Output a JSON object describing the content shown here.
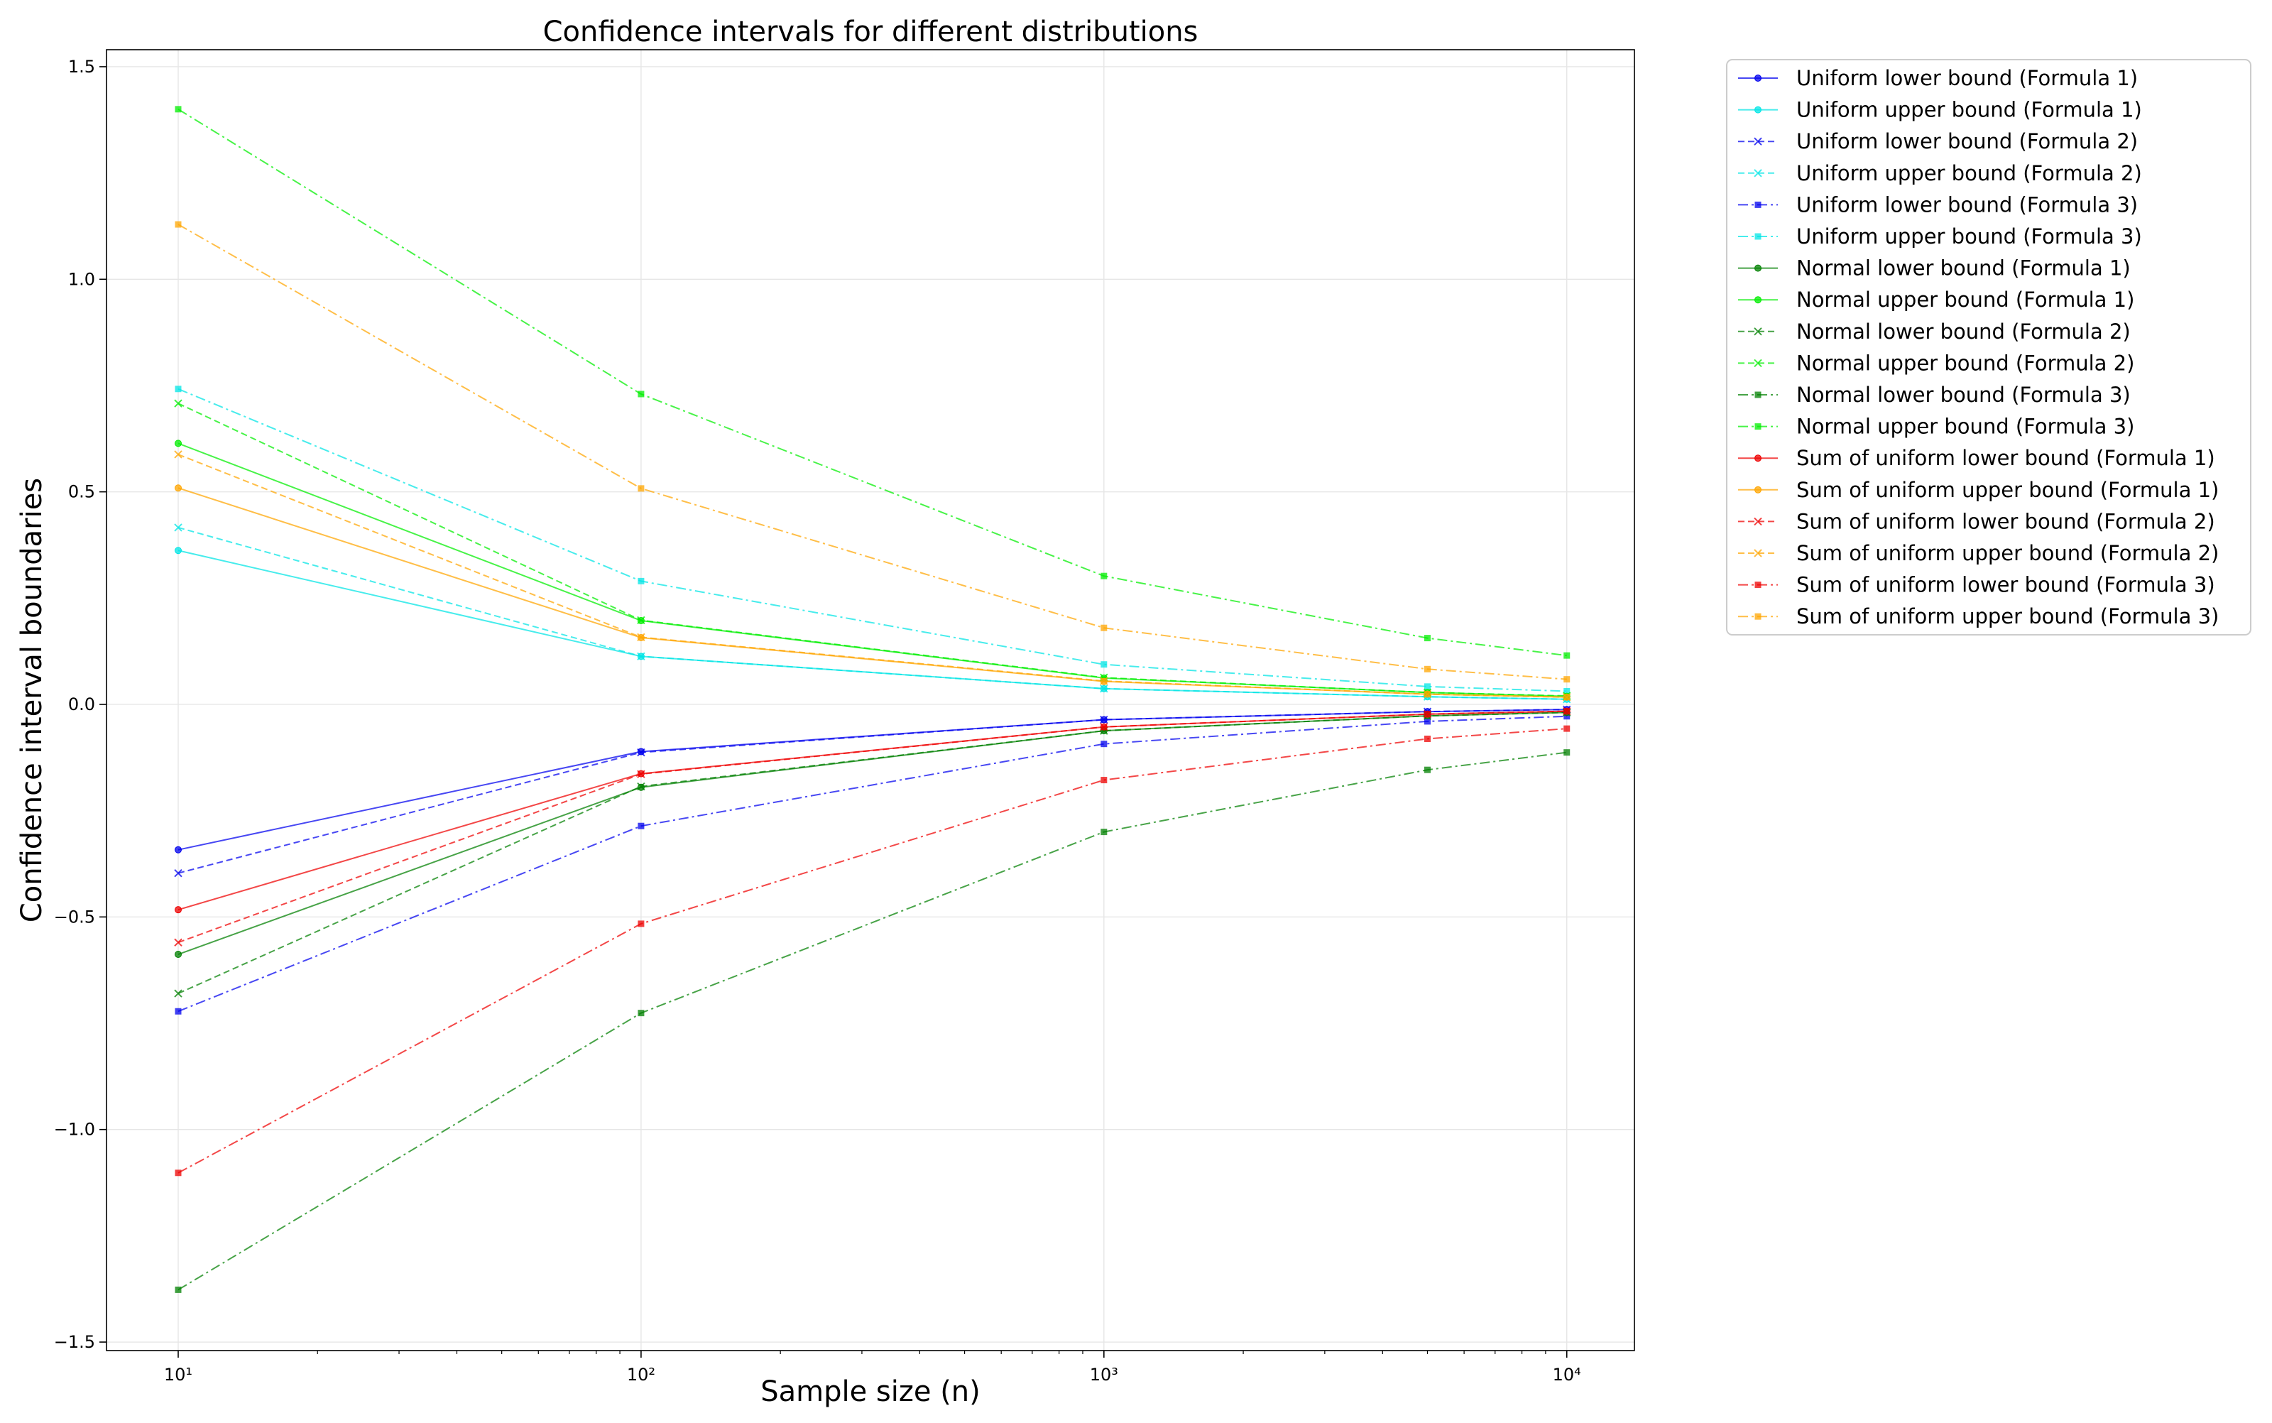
{
  "chart_data": {
    "type": "line",
    "title": "Confidence intervals for different distributions",
    "xlabel": "Sample size (n)",
    "ylabel": "Confidence interval boundaries",
    "xscale": "log",
    "xlim": [
      7,
      14000
    ],
    "ylim": [
      -1.52,
      1.54
    ],
    "x": [
      10,
      100,
      1000,
      5000,
      10000
    ],
    "x_tick_labels": [
      "10¹",
      "10²",
      "10³",
      "10⁴"
    ],
    "x_tick_values": [
      10,
      100,
      1000,
      10000
    ],
    "y_ticks": [
      1.5,
      1.0,
      0.5,
      0.0,
      -0.5,
      -1.0,
      -1.5
    ],
    "y_tick_labels": [
      "1.5",
      "1.0",
      "0.5",
      "0.0",
      "−0.5",
      "−1.0",
      "−1.5"
    ],
    "grid": true,
    "legend_position": "outside-right",
    "series": [
      {
        "name": "Uniform lower bound (Formula 1)",
        "color": "#0000ee",
        "dash": "solid",
        "marker": "circle",
        "values": [
          -0.342,
          -0.111,
          -0.036,
          -0.017,
          -0.012
        ]
      },
      {
        "name": "Uniform upper bound (Formula 1)",
        "color": "#00e5e5",
        "dash": "solid",
        "marker": "circle",
        "values": [
          0.362,
          0.113,
          0.037,
          0.018,
          0.012
        ]
      },
      {
        "name": "Uniform lower bound (Formula 2)",
        "color": "#0000ee",
        "dash": "dashed",
        "marker": "x",
        "values": [
          -0.397,
          -0.113,
          -0.036,
          -0.017,
          -0.012
        ]
      },
      {
        "name": "Uniform upper bound (Formula 2)",
        "color": "#00e5e5",
        "dash": "dashed",
        "marker": "x",
        "values": [
          0.416,
          0.113,
          0.037,
          0.018,
          0.012
        ]
      },
      {
        "name": "Uniform lower bound (Formula 3)",
        "color": "#0000ee",
        "dash": "dashdot",
        "marker": "square",
        "values": [
          -0.722,
          -0.286,
          -0.093,
          -0.04,
          -0.028
        ]
      },
      {
        "name": "Uniform upper bound (Formula 3)",
        "color": "#00e5e5",
        "dash": "dashdot",
        "marker": "square",
        "values": [
          0.742,
          0.29,
          0.094,
          0.042,
          0.031
        ]
      },
      {
        "name": "Normal lower bound (Formula 1)",
        "color": "#008000",
        "dash": "solid",
        "marker": "circle",
        "values": [
          -0.588,
          -0.195,
          -0.062,
          -0.027,
          -0.019
        ]
      },
      {
        "name": "Normal upper bound (Formula 1)",
        "color": "#00ee00",
        "dash": "solid",
        "marker": "circle",
        "values": [
          0.614,
          0.197,
          0.062,
          0.028,
          0.019
        ]
      },
      {
        "name": "Normal lower bound (Formula 2)",
        "color": "#008000",
        "dash": "dashed",
        "marker": "x",
        "values": [
          -0.68,
          -0.193,
          -0.062,
          -0.027,
          -0.019
        ]
      },
      {
        "name": "Normal upper bound (Formula 2)",
        "color": "#00ee00",
        "dash": "dashed",
        "marker": "x",
        "values": [
          0.708,
          0.198,
          0.063,
          0.028,
          0.02
        ]
      },
      {
        "name": "Normal lower bound (Formula 3)",
        "color": "#008000",
        "dash": "dashdot",
        "marker": "square",
        "values": [
          -1.377,
          -0.726,
          -0.3,
          -0.154,
          -0.113
        ]
      },
      {
        "name": "Normal upper bound (Formula 3)",
        "color": "#00ee00",
        "dash": "dashdot",
        "marker": "square",
        "values": [
          1.4,
          0.73,
          0.302,
          0.156,
          0.115
        ]
      },
      {
        "name": "Sum of uniform lower bound (Formula 1)",
        "color": "#ee0000",
        "dash": "solid",
        "marker": "circle",
        "values": [
          -0.483,
          -0.163,
          -0.053,
          -0.023,
          -0.016
        ]
      },
      {
        "name": "Sum of uniform upper bound (Formula 1)",
        "color": "#ffa500",
        "dash": "solid",
        "marker": "circle",
        "values": [
          0.509,
          0.157,
          0.054,
          0.024,
          0.017
        ]
      },
      {
        "name": "Sum of uniform lower bound (Formula 2)",
        "color": "#ee0000",
        "dash": "dashed",
        "marker": "x",
        "values": [
          -0.56,
          -0.164,
          -0.053,
          -0.023,
          -0.016
        ]
      },
      {
        "name": "Sum of uniform upper bound (Formula 2)",
        "color": "#ffa500",
        "dash": "dashed",
        "marker": "x",
        "values": [
          0.588,
          0.158,
          0.055,
          0.024,
          0.017
        ]
      },
      {
        "name": "Sum of uniform lower bound (Formula 3)",
        "color": "#ee0000",
        "dash": "dashdot",
        "marker": "square",
        "values": [
          -1.102,
          -0.516,
          -0.178,
          -0.081,
          -0.057
        ]
      },
      {
        "name": "Sum of uniform upper bound (Formula 3)",
        "color": "#ffa500",
        "dash": "dashdot",
        "marker": "square",
        "values": [
          1.129,
          0.508,
          0.18,
          0.083,
          0.059
        ]
      }
    ]
  }
}
